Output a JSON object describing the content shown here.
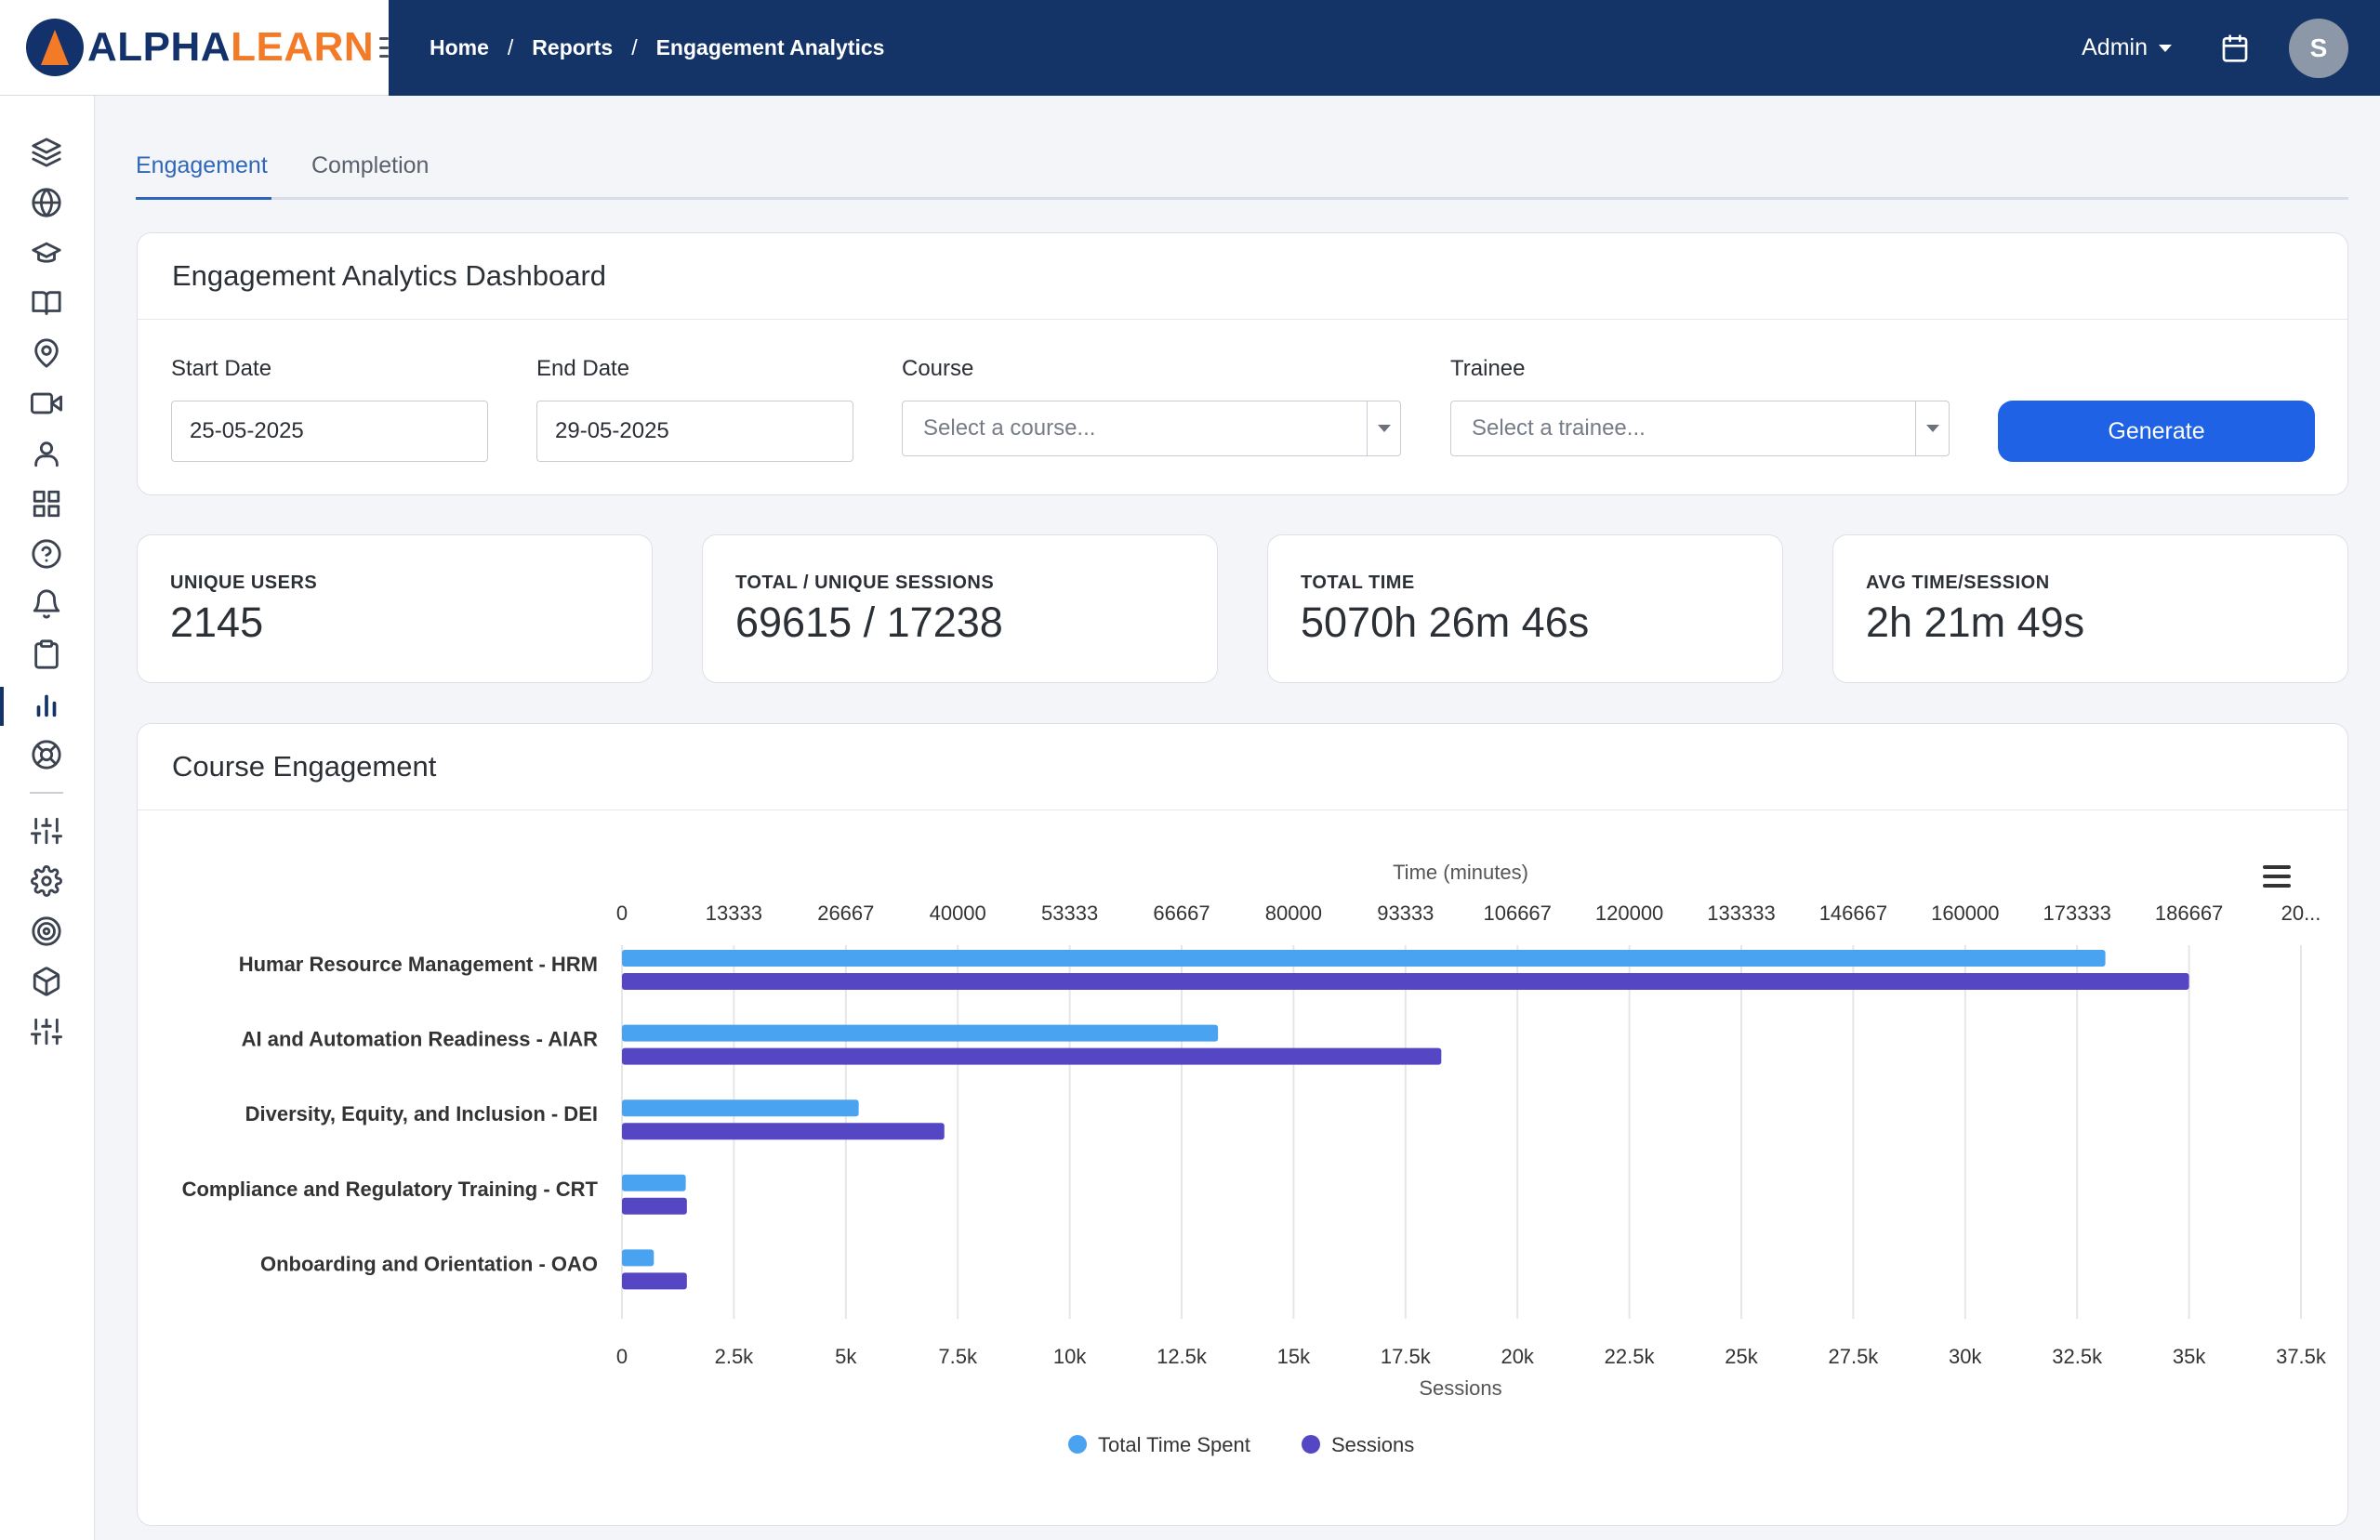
{
  "app": {
    "logo_part1": "ALPHA",
    "logo_part2": "LEARN"
  },
  "breadcrumb": [
    {
      "label": "Home"
    },
    {
      "label": "Reports"
    },
    {
      "label": "Engagement Analytics"
    }
  ],
  "header": {
    "user_menu": "Admin",
    "avatar_initial": "S"
  },
  "sidebar": {
    "icons": [
      "layers-icon",
      "globe-icon",
      "graduation-cap-icon",
      "book-icon",
      "map-pin-icon",
      "video-icon",
      "user-icon",
      "grid-icon",
      "help-circle-icon",
      "bell-icon",
      "clipboard-icon",
      "bar-chart-icon",
      "lifebuoy-icon",
      "sliders-icon",
      "gear-icon",
      "target-icon",
      "box-icon",
      "sliders-icon"
    ],
    "active": "bar-chart-icon"
  },
  "tabs": [
    {
      "label": "Engagement",
      "active": true
    },
    {
      "label": "Completion",
      "active": false
    }
  ],
  "filters": {
    "title": "Engagement Analytics Dashboard",
    "start_date_label": "Start Date",
    "start_date_value": "25-05-2025",
    "end_date_label": "End Date",
    "end_date_value": "29-05-2025",
    "course_label": "Course",
    "course_placeholder": "Select a course...",
    "trainee_label": "Trainee",
    "trainee_placeholder": "Select a trainee...",
    "generate_label": "Generate"
  },
  "stats": [
    {
      "label": "UNIQUE USERS",
      "value": "2145"
    },
    {
      "label": "TOTAL / UNIQUE SESSIONS",
      "value": "69615 / 17238"
    },
    {
      "label": "TOTAL TIME",
      "value": "5070h 26m 46s"
    },
    {
      "label": "AVG TIME/SESSION",
      "value": "2h 21m 49s"
    }
  ],
  "course_engagement": {
    "title": "Course Engagement"
  },
  "colors": {
    "time": "#4aa3f0",
    "sessions": "#5547c3",
    "accent": "#1f62e6",
    "nav": "#143468"
  },
  "chart_data": {
    "type": "bar",
    "orientation": "horizontal",
    "categories": [
      "Humar Resource Management - HRM",
      "AI and Automation Readiness - AIAR",
      "Diversity, Equity, and Inclusion - DEI",
      "Compliance and Regulatory Training - CRT",
      "Onboarding and Orientation - OAO"
    ],
    "series": [
      {
        "name": "Total Time Spent",
        "axis": "top",
        "values": [
          176700,
          71000,
          28200,
          7600,
          3800
        ]
      },
      {
        "name": "Sessions",
        "axis": "bottom",
        "values": [
          35000,
          18300,
          7200,
          1450,
          1450
        ]
      }
    ],
    "top_axis": {
      "label": "Time (minutes)",
      "min": 0,
      "max": 200000,
      "ticks": [
        "0",
        "13333",
        "26667",
        "40000",
        "53333",
        "66667",
        "80000",
        "93333",
        "106667",
        "120000",
        "133333",
        "146667",
        "160000",
        "173333",
        "186667",
        "20..."
      ]
    },
    "bottom_axis": {
      "label": "Sessions",
      "min": 0,
      "max": 37500,
      "ticks": [
        "0",
        "2.5k",
        "5k",
        "7.5k",
        "10k",
        "12.5k",
        "15k",
        "17.5k",
        "20k",
        "22.5k",
        "25k",
        "27.5k",
        "30k",
        "32.5k",
        "35k",
        "37.5k"
      ]
    },
    "legend": [
      "Total Time Spent",
      "Sessions"
    ],
    "legend_position": "bottom",
    "grid": true
  }
}
